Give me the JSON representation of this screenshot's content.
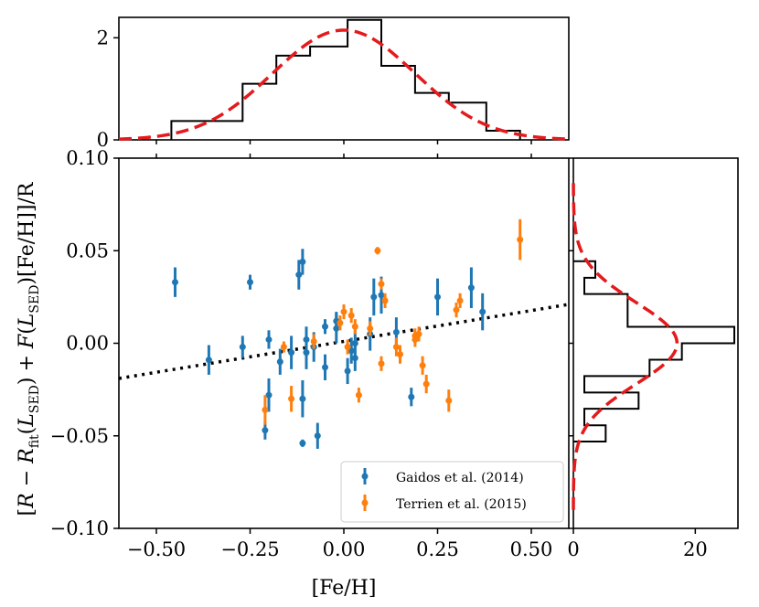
{
  "chart_data": [
    {
      "id": "main-scatter",
      "type": "scatter",
      "xlabel": "[Fe/H]",
      "ylabel": "[R − R_fit(L_SED) + F(L_SED)[Fe/H]]/R",
      "ylabel_parts": {
        "open": "[",
        "R": "R",
        "minus": " − ",
        "Rsym": "R",
        "fit_sub": "fit",
        "L_sym": "L",
        "sed_sub": "SED",
        "plus_F": "+ F(",
        "feh": "[Fe/H]",
        "close_R": "]/R",
        "lparen": "(",
        "rparen": ")",
        "close_paren2": ")"
      },
      "xlim": [
        -0.6,
        0.6
      ],
      "ylim": [
        -0.1,
        0.1
      ],
      "xticks": [
        -0.5,
        -0.25,
        0.0,
        0.25,
        0.5
      ],
      "xtick_labels": [
        "−0.50",
        "−0.25",
        "0.00",
        "0.25",
        "0.50"
      ],
      "yticks": [
        -0.1,
        -0.05,
        0.0,
        0.05,
        0.1
      ],
      "ytick_labels": [
        "−0.10",
        "−0.05",
        "0.00",
        "0.05",
        "0.10"
      ],
      "fit_line": {
        "style": "dotted",
        "color": "#000000",
        "x": [
          -0.6,
          0.6
        ],
        "y": [
          -0.019,
          0.021
        ]
      },
      "legend": {
        "placement": "lower-right"
      },
      "series": [
        {
          "name": "Gaidos et al. (2014)",
          "color": "#1f77b4",
          "points": [
            {
              "x": -0.45,
              "y": 0.033,
              "err": 0.008
            },
            {
              "x": -0.36,
              "y": -0.009,
              "err": 0.008
            },
            {
              "x": -0.27,
              "y": -0.002,
              "err": 0.006
            },
            {
              "x": -0.25,
              "y": 0.033,
              "err": 0.004
            },
            {
              "x": -0.21,
              "y": -0.047,
              "err": 0.005
            },
            {
              "x": -0.2,
              "y": -0.028,
              "err": 0.009
            },
            {
              "x": -0.2,
              "y": 0.002,
              "err": 0.005
            },
            {
              "x": -0.17,
              "y": -0.01,
              "err": 0.007
            },
            {
              "x": -0.14,
              "y": -0.005,
              "err": 0.009
            },
            {
              "x": -0.12,
              "y": 0.037,
              "err": 0.008
            },
            {
              "x": -0.11,
              "y": 0.044,
              "err": 0.007
            },
            {
              "x": -0.11,
              "y": -0.03,
              "err": 0.01
            },
            {
              "x": -0.11,
              "y": -0.054,
              "err": 0.002
            },
            {
              "x": -0.1,
              "y": 0.002,
              "err": 0.007
            },
            {
              "x": -0.1,
              "y": -0.005,
              "err": 0.009
            },
            {
              "x": -0.08,
              "y": -0.002,
              "err": 0.008
            },
            {
              "x": -0.07,
              "y": -0.05,
              "err": 0.007
            },
            {
              "x": -0.05,
              "y": -0.013,
              "err": 0.007
            },
            {
              "x": -0.05,
              "y": 0.009,
              "err": 0.004
            },
            {
              "x": -0.02,
              "y": 0.008,
              "err": 0.008
            },
            {
              "x": -0.02,
              "y": 0.012,
              "err": 0.005
            },
            {
              "x": 0.01,
              "y": -0.015,
              "err": 0.007
            },
            {
              "x": 0.02,
              "y": -0.004,
              "err": 0.007
            },
            {
              "x": 0.03,
              "y": -0.008,
              "err": 0.007
            },
            {
              "x": 0.03,
              "y": 0.0,
              "err": 0.007
            },
            {
              "x": 0.07,
              "y": 0.005,
              "err": 0.009
            },
            {
              "x": 0.08,
              "y": 0.025,
              "err": 0.01
            },
            {
              "x": 0.1,
              "y": 0.026,
              "err": 0.01
            },
            {
              "x": 0.14,
              "y": 0.006,
              "err": 0.008
            },
            {
              "x": 0.18,
              "y": -0.029,
              "err": 0.005
            },
            {
              "x": 0.25,
              "y": 0.025,
              "err": 0.01
            },
            {
              "x": 0.34,
              "y": 0.03,
              "err": 0.011
            },
            {
              "x": 0.37,
              "y": 0.017,
              "err": 0.01
            }
          ]
        },
        {
          "name": "Terrien et al. (2015)",
          "color": "#ff7f0e",
          "points": [
            {
              "x": -0.21,
              "y": -0.036,
              "err": 0.008
            },
            {
              "x": -0.16,
              "y": -0.002,
              "err": 0.003
            },
            {
              "x": -0.14,
              "y": -0.03,
              "err": 0.007
            },
            {
              "x": -0.08,
              "y": 0.001,
              "err": 0.004
            },
            {
              "x": -0.01,
              "y": 0.011,
              "err": 0.004
            },
            {
              "x": 0.0,
              "y": 0.017,
              "err": 0.004
            },
            {
              "x": 0.01,
              "y": -0.002,
              "err": 0.004
            },
            {
              "x": 0.02,
              "y": 0.015,
              "err": 0.004
            },
            {
              "x": 0.03,
              "y": 0.009,
              "err": 0.004
            },
            {
              "x": 0.04,
              "y": -0.028,
              "err": 0.004
            },
            {
              "x": 0.07,
              "y": 0.008,
              "err": 0.004
            },
            {
              "x": 0.09,
              "y": 0.05,
              "err": 0.002
            },
            {
              "x": 0.1,
              "y": 0.032,
              "err": 0.003
            },
            {
              "x": 0.1,
              "y": -0.011,
              "err": 0.004
            },
            {
              "x": 0.11,
              "y": 0.023,
              "err": 0.004
            },
            {
              "x": 0.14,
              "y": -0.002,
              "err": 0.005
            },
            {
              "x": 0.15,
              "y": -0.006,
              "err": 0.005
            },
            {
              "x": 0.19,
              "y": 0.004,
              "err": 0.004
            },
            {
              "x": 0.19,
              "y": 0.002,
              "err": 0.004
            },
            {
              "x": 0.2,
              "y": 0.005,
              "err": 0.004
            },
            {
              "x": 0.21,
              "y": -0.012,
              "err": 0.005
            },
            {
              "x": 0.22,
              "y": -0.022,
              "err": 0.005
            },
            {
              "x": 0.28,
              "y": -0.031,
              "err": 0.006
            },
            {
              "x": 0.3,
              "y": 0.018,
              "err": 0.004
            },
            {
              "x": 0.31,
              "y": 0.023,
              "err": 0.004
            },
            {
              "x": 0.47,
              "y": 0.056,
              "err": 0.011
            }
          ]
        }
      ]
    },
    {
      "id": "top-histogram",
      "type": "histogram",
      "xlim": [
        -0.6,
        0.6
      ],
      "ylim": [
        0,
        2.4
      ],
      "yticks": [
        0,
        2
      ],
      "ytick_labels": [
        "0",
        "2"
      ],
      "bin_edges": [
        -0.46,
        -0.37,
        -0.27,
        -0.18,
        -0.09,
        0.01,
        0.1,
        0.19,
        0.28,
        0.38,
        0.47
      ],
      "counts": [
        0.37,
        0.37,
        1.1,
        1.65,
        1.83,
        2.35,
        1.45,
        0.92,
        0.73,
        0.18
      ],
      "gaussian_fit": {
        "style": "dashed",
        "color": "#e41a1c",
        "mean": 0.0,
        "sigma": 0.19,
        "peak": 2.15
      }
    },
    {
      "id": "right-histogram",
      "type": "histogram",
      "orientation": "horizontal",
      "xlim": [
        0,
        27
      ],
      "ylim": [
        -0.1,
        0.1
      ],
      "xticks": [
        0,
        20
      ],
      "xtick_labels": [
        "0",
        "20"
      ],
      "bin_edges": [
        -0.0531,
        -0.0443,
        -0.0354,
        -0.0266,
        -0.0177,
        -0.0089,
        0.0,
        0.0089,
        0.0177,
        0.0266,
        0.0354,
        0.0443
      ],
      "counts": [
        5.3,
        1.8,
        10.7,
        1.8,
        12.5,
        17.8,
        26.4,
        8.9,
        8.9,
        1.8,
        3.6
      ],
      "gaussian_fit": {
        "style": "dashed",
        "color": "#e41a1c",
        "mean": 0.0,
        "sigma": 0.022,
        "peak": 17.0
      }
    }
  ]
}
